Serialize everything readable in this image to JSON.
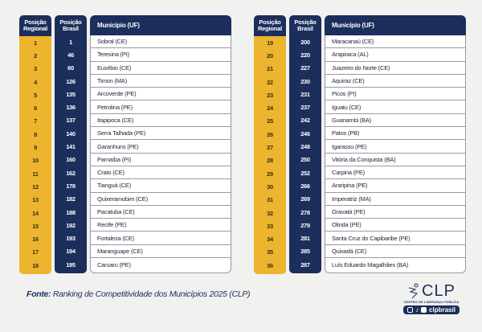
{
  "headers": {
    "regional": "Posição Regional",
    "brasil": "Posição Brasil",
    "municipio": "Município (UF)"
  },
  "left_table": [
    {
      "regional": "1",
      "brasil": "1",
      "municipio": "Sobral (CE)"
    },
    {
      "regional": "2",
      "brasil": "46",
      "municipio": "Teresina (PI)"
    },
    {
      "regional": "3",
      "brasil": "60",
      "municipio": "Eusébio (CE)"
    },
    {
      "regional": "4",
      "brasil": "126",
      "municipio": "Timon (MA)"
    },
    {
      "regional": "5",
      "brasil": "135",
      "municipio": "Arcoverde (PE)"
    },
    {
      "regional": "6",
      "brasil": "136",
      "municipio": "Petrolina (PE)"
    },
    {
      "regional": "7",
      "brasil": "137",
      "municipio": "Itapipoca (CE)"
    },
    {
      "regional": "8",
      "brasil": "140",
      "municipio": "Serra Talhada (PE)"
    },
    {
      "regional": "9",
      "brasil": "141",
      "municipio": "Garanhuns (PE)"
    },
    {
      "regional": "10",
      "brasil": "160",
      "municipio": "Parnaíba (PI)"
    },
    {
      "regional": "11",
      "brasil": "162",
      "municipio": "Crato (CE)"
    },
    {
      "regional": "12",
      "brasil": "178",
      "municipio": "Tianguá (CE)"
    },
    {
      "regional": "13",
      "brasil": "182",
      "municipio": "Quixeramobim (CE)"
    },
    {
      "regional": "14",
      "brasil": "188",
      "municipio": "Pacatuba (CE)"
    },
    {
      "regional": "15",
      "brasil": "192",
      "municipio": "Recife (PE)"
    },
    {
      "regional": "16",
      "brasil": "193",
      "municipio": "Fortaleza (CE)"
    },
    {
      "regional": "17",
      "brasil": "194",
      "municipio": "Maranguape (CE)"
    },
    {
      "regional": "18",
      "brasil": "195",
      "municipio": "Caruaru (PE)"
    }
  ],
  "right_table": [
    {
      "regional": "19",
      "brasil": "200",
      "municipio": "Maracanaú (CE)"
    },
    {
      "regional": "20",
      "brasil": "220",
      "municipio": "Arapiraca (AL)"
    },
    {
      "regional": "21",
      "brasil": "227",
      "municipio": "Juazeiro do Norte (CE)"
    },
    {
      "regional": "22",
      "brasil": "230",
      "municipio": "Aquiraz (CE)"
    },
    {
      "regional": "23",
      "brasil": "231",
      "municipio": "Picos (PI)"
    },
    {
      "regional": "24",
      "brasil": "237",
      "municipio": "Iguatu (CE)"
    },
    {
      "regional": "25",
      "brasil": "242",
      "municipio": "Guanambi (BA)"
    },
    {
      "regional": "26",
      "brasil": "246",
      "municipio": "Patos (PB)"
    },
    {
      "regional": "27",
      "brasil": "248",
      "municipio": "Igarassu (PE)"
    },
    {
      "regional": "28",
      "brasil": "250",
      "municipio": "Vitória da Conquista (BA)"
    },
    {
      "regional": "29",
      "brasil": "252",
      "municipio": "Carpina (PE)"
    },
    {
      "regional": "30",
      "brasil": "266",
      "municipio": "Araripina (PE)"
    },
    {
      "regional": "31",
      "brasil": "269",
      "municipio": "Imperatriz (MA)"
    },
    {
      "regional": "32",
      "brasil": "278",
      "municipio": "Gravatá (PE)"
    },
    {
      "regional": "33",
      "brasil": "279",
      "municipio": "Olinda (PE)"
    },
    {
      "regional": "34",
      "brasil": "281",
      "municipio": "Santa Cruz do Capibaribe (PE)"
    },
    {
      "regional": "35",
      "brasil": "285",
      "municipio": "Quixadá (CE)"
    },
    {
      "regional": "36",
      "brasil": "287",
      "municipio": "Luís Eduardo Magalhães (BA)"
    }
  ],
  "footer": {
    "fonte_label": "Fonte:",
    "fonte_text": " Ranking de Competitividade dos Municípios 2025 (CLP)"
  },
  "logo": {
    "name": "CLP",
    "subtitle": "CENTRO DE LIDERANÇA PÚBLICA",
    "social_handle": "clpbrasil"
  },
  "colors": {
    "navy": "#1c2e5c",
    "gold": "#edb42e"
  }
}
